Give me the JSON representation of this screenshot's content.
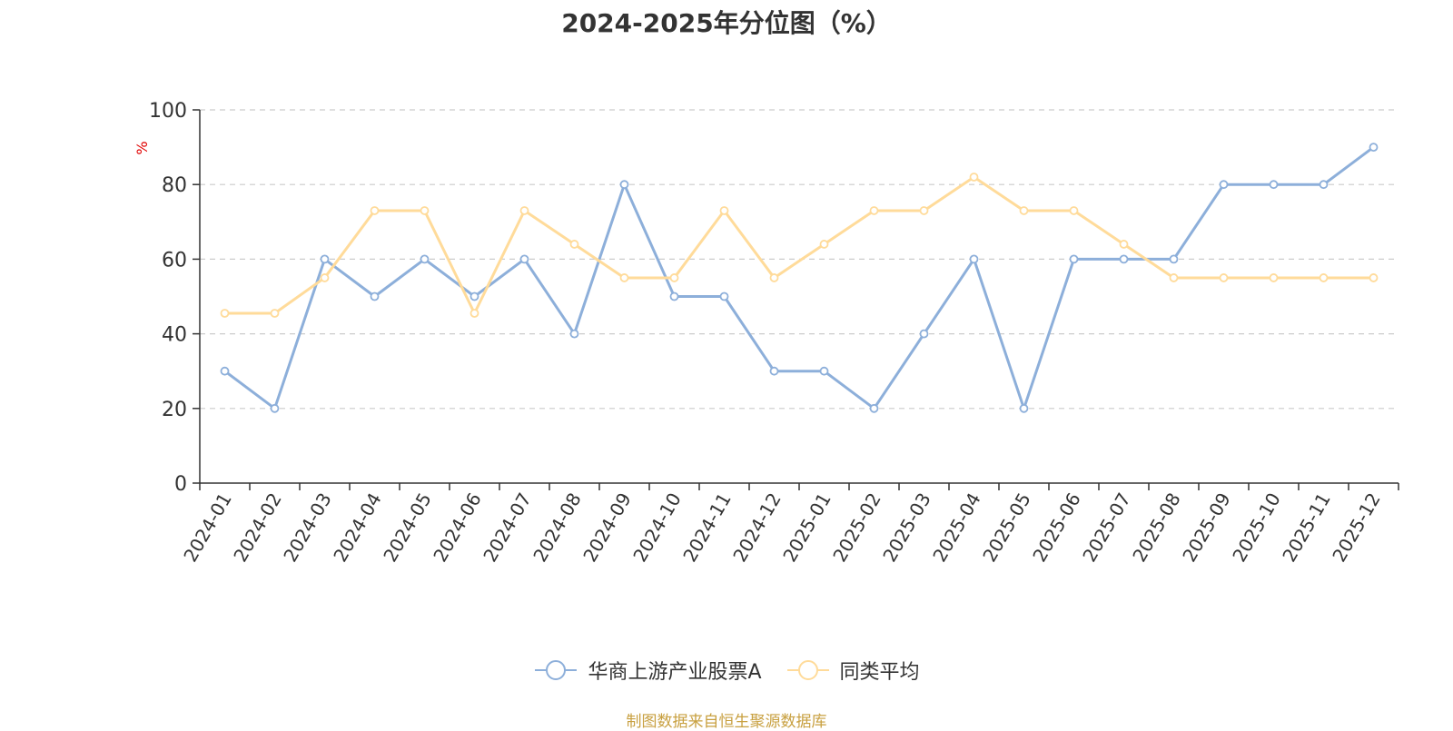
{
  "title": "2024-2025年分位图（%）",
  "source_text": "制图数据来自恒生聚源数据库",
  "colors": {
    "fund": "#8DAFDA",
    "average": "#FFDB9A",
    "grid": "#cccccc",
    "unit": "#e00000",
    "source": "#c8a040"
  },
  "chart_data": {
    "type": "line",
    "title": "2024-2025年分位图（%）",
    "ylabel": "%",
    "ylim": [
      0,
      100
    ],
    "yticks": [
      0,
      20,
      40,
      60,
      80,
      100
    ],
    "grid": true,
    "legend_position": "bottom",
    "categories": [
      "2024-01",
      "2024-02",
      "2024-03",
      "2024-04",
      "2024-05",
      "2024-06",
      "2024-07",
      "2024-08",
      "2024-09",
      "2024-10",
      "2024-11",
      "2024-12",
      "2025-01",
      "2025-02",
      "2025-03",
      "2025-04",
      "2025-05",
      "2025-06",
      "2025-07",
      "2025-08",
      "2025-09",
      "2025-10",
      "2025-11",
      "2025-12"
    ],
    "series": [
      {
        "name": "华商上游产业股票A",
        "color": "#8DAFDA",
        "values": [
          30,
          20,
          60,
          50,
          60,
          50,
          60,
          40,
          80,
          50,
          50,
          30,
          30,
          20,
          40,
          60,
          20,
          60,
          60,
          60,
          80,
          80,
          80,
          90
        ]
      },
      {
        "name": "同类平均",
        "color": "#FFDB9A",
        "values": [
          45.5,
          45.5,
          55,
          73,
          73,
          45.5,
          73,
          64,
          55,
          55,
          73,
          55,
          64,
          73,
          73,
          82,
          73,
          73,
          64,
          55,
          55,
          55,
          55,
          55
        ]
      }
    ]
  }
}
